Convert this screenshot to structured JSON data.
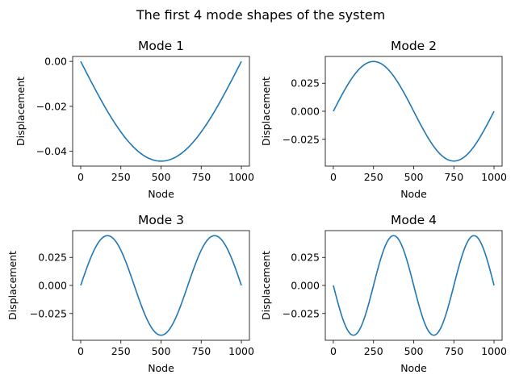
{
  "figure": {
    "suptitle": "The first 4 mode shapes of the system",
    "line_color": "#1f77b4"
  },
  "chart_data": [
    {
      "type": "line",
      "title": "Mode 1",
      "xlabel": "Node",
      "ylabel": "Displacement",
      "xlim": [
        -50,
        1050
      ],
      "ylim": [
        -0.0466,
        0.0022
      ],
      "xticks": [
        0,
        250,
        500,
        750,
        1000
      ],
      "xtick_labels": [
        "0",
        "250",
        "500",
        "750",
        "1000"
      ],
      "yticks": [
        0.0,
        -0.02,
        -0.04
      ],
      "ytick_labels": [
        "0.00",
        "−0.02",
        "−0.04"
      ],
      "grid": false,
      "series": [
        {
          "name": "Mode 1",
          "shape": "sine",
          "amplitude": -0.0444,
          "half_waves": 1,
          "x": [
            0,
            50,
            100,
            150,
            200,
            250,
            300,
            350,
            400,
            450,
            500,
            550,
            600,
            650,
            700,
            750,
            800,
            850,
            900,
            950,
            1000
          ],
          "y": [
            0.0,
            -0.00695,
            -0.01372,
            -0.02016,
            -0.0261,
            -0.0314,
            -0.03592,
            -0.03956,
            -0.04223,
            -0.04387,
            -0.0444,
            -0.04387,
            -0.04223,
            -0.03956,
            -0.03592,
            -0.0314,
            -0.0261,
            -0.02016,
            -0.01372,
            -0.00695,
            0.0
          ]
        }
      ]
    },
    {
      "type": "line",
      "title": "Mode 2",
      "xlabel": "Node",
      "ylabel": "Displacement",
      "xlim": [
        -50,
        1050
      ],
      "ylim": [
        -0.0489,
        0.0489
      ],
      "xticks": [
        0,
        250,
        500,
        750,
        1000
      ],
      "xtick_labels": [
        "0",
        "250",
        "500",
        "750",
        "1000"
      ],
      "yticks": [
        0.025,
        0.0,
        -0.025
      ],
      "ytick_labels": [
        "0.025",
        "0.000",
        "−0.025"
      ],
      "grid": false,
      "series": [
        {
          "name": "Mode 2",
          "shape": "sine",
          "amplitude": 0.0444,
          "half_waves": 2,
          "x": [
            0,
            50,
            100,
            150,
            200,
            250,
            300,
            350,
            400,
            450,
            500,
            550,
            600,
            650,
            700,
            750,
            800,
            850,
            900,
            950,
            1000
          ],
          "y": [
            0.0,
            0.01372,
            0.0261,
            0.03592,
            0.04223,
            0.0444,
            0.04223,
            0.03592,
            0.0261,
            0.01372,
            0.0,
            -0.01372,
            -0.0261,
            -0.03592,
            -0.04223,
            -0.0444,
            -0.04223,
            -0.03592,
            -0.0261,
            -0.01372,
            0.0
          ]
        }
      ]
    },
    {
      "type": "line",
      "title": "Mode 3",
      "xlabel": "Node",
      "ylabel": "Displacement",
      "xlim": [
        -50,
        1050
      ],
      "ylim": [
        -0.0489,
        0.0489
      ],
      "xticks": [
        0,
        250,
        500,
        750,
        1000
      ],
      "xtick_labels": [
        "0",
        "250",
        "500",
        "750",
        "1000"
      ],
      "yticks": [
        0.025,
        0.0,
        -0.025
      ],
      "ytick_labels": [
        "0.025",
        "0.000",
        "−0.025"
      ],
      "grid": false,
      "series": [
        {
          "name": "Mode 3",
          "shape": "sine",
          "amplitude": 0.0444,
          "half_waves": 3,
          "x": [
            0,
            50,
            100,
            150,
            200,
            250,
            300,
            350,
            400,
            450,
            500,
            550,
            600,
            650,
            700,
            750,
            800,
            850,
            900,
            950,
            1000
          ],
          "y": [
            0.0,
            0.02016,
            0.03592,
            0.04387,
            0.04223,
            0.0314,
            0.01372,
            -0.00695,
            -0.0261,
            -0.03956,
            -0.0444,
            -0.03956,
            -0.0261,
            -0.00695,
            0.01372,
            0.0314,
            0.04223,
            0.04387,
            0.03592,
            0.02016,
            0.0
          ]
        }
      ]
    },
    {
      "type": "line",
      "title": "Mode 4",
      "xlabel": "Node",
      "ylabel": "Displacement",
      "xlim": [
        -50,
        1050
      ],
      "ylim": [
        -0.0489,
        0.0489
      ],
      "xticks": [
        0,
        250,
        500,
        750,
        1000
      ],
      "xtick_labels": [
        "0",
        "250",
        "500",
        "750",
        "1000"
      ],
      "yticks": [
        0.025,
        0.0,
        -0.025
      ],
      "ytick_labels": [
        "0.025",
        "0.000",
        "−0.025"
      ],
      "grid": false,
      "series": [
        {
          "name": "Mode 4",
          "shape": "sine",
          "amplitude": -0.0444,
          "half_waves": 4,
          "x": [
            0,
            50,
            100,
            150,
            200,
            250,
            300,
            350,
            400,
            450,
            500,
            550,
            600,
            650,
            700,
            750,
            800,
            850,
            900,
            950,
            1000
          ],
          "y": [
            0.0,
            -0.0261,
            -0.04223,
            -0.04223,
            -0.0261,
            0.0,
            0.0261,
            0.04223,
            0.04223,
            0.0261,
            0.0,
            -0.0261,
            -0.04223,
            -0.04223,
            -0.0261,
            0.0,
            0.0261,
            0.04223,
            0.04223,
            0.0261,
            0.0
          ]
        }
      ]
    }
  ]
}
